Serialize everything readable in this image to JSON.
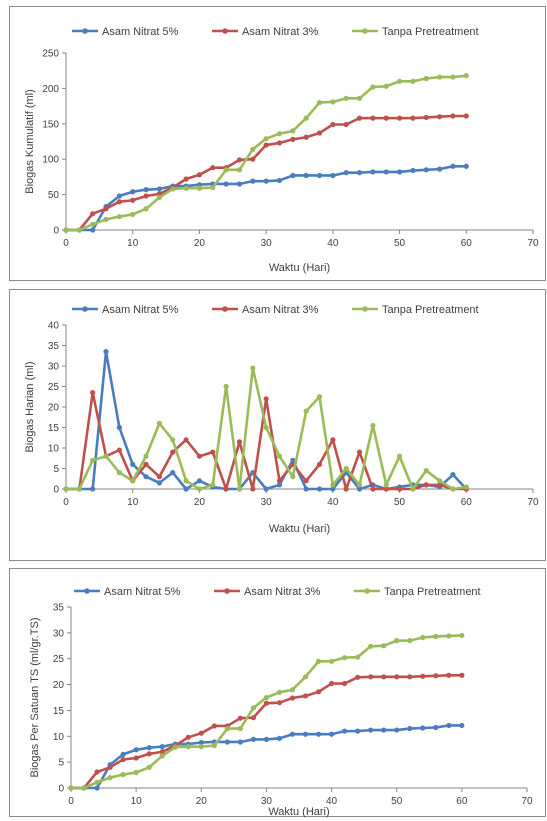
{
  "chart_data": [
    {
      "type": "line",
      "xlabel": "Waktu (Hari)",
      "ylabel": "Biogas Kumulatif (ml)",
      "xlim": [
        0,
        70
      ],
      "ylim": [
        0,
        250
      ],
      "xticks": [
        0,
        10,
        20,
        30,
        40,
        50,
        60,
        70
      ],
      "yticks": [
        0,
        50,
        100,
        150,
        200,
        250
      ],
      "grid": "none",
      "legend_position": "top",
      "x": [
        0,
        2,
        4,
        6,
        8,
        10,
        12,
        14,
        16,
        18,
        20,
        22,
        24,
        26,
        28,
        30,
        32,
        34,
        36,
        38,
        40,
        42,
        44,
        46,
        48,
        50,
        52,
        54,
        56,
        58,
        60
      ],
      "series": [
        {
          "name": "Asam Nitrat 5%",
          "color": "#4a7dbe",
          "values": [
            0,
            0,
            0,
            33,
            48,
            54,
            57,
            58,
            62,
            62,
            64,
            65,
            65,
            65,
            69,
            69,
            70,
            77,
            77,
            77,
            77,
            81,
            81,
            82,
            82,
            82,
            84,
            85,
            86,
            90,
            90
          ]
        },
        {
          "name": "Asam Nitrat 3%",
          "color": "#c0504d",
          "values": [
            0,
            0,
            23,
            30,
            40,
            42,
            48,
            51,
            60,
            72,
            78,
            88,
            88,
            99,
            100,
            120,
            123,
            128,
            131,
            137,
            149,
            149,
            158,
            158,
            158,
            158,
            158,
            159,
            160,
            161,
            161
          ]
        },
        {
          "name": "Tanpa Pretreatment",
          "color": "#9bbb59",
          "values": [
            0,
            0,
            8,
            15,
            19,
            22,
            30,
            46,
            58,
            59,
            59,
            60,
            85,
            85,
            114,
            129,
            136,
            140,
            158,
            180,
            181,
            186,
            186,
            202,
            203,
            210,
            210,
            214,
            216,
            216,
            218
          ]
        }
      ]
    },
    {
      "type": "line",
      "xlabel": "Waktu (Hari)",
      "ylabel": "Biogas Harian (ml)",
      "xlim": [
        0,
        70
      ],
      "ylim": [
        0,
        40
      ],
      "xticks": [
        0,
        10,
        20,
        30,
        40,
        50,
        60,
        70
      ],
      "yticks": [
        0,
        5,
        10,
        15,
        20,
        25,
        30,
        35,
        40
      ],
      "grid": "none",
      "legend_position": "top",
      "x": [
        0,
        2,
        4,
        6,
        8,
        10,
        12,
        14,
        16,
        18,
        20,
        22,
        24,
        26,
        28,
        30,
        32,
        34,
        36,
        38,
        40,
        42,
        44,
        46,
        48,
        50,
        52,
        54,
        56,
        58,
        60
      ],
      "series": [
        {
          "name": "Asam Nitrat 5%",
          "color": "#4a7dbe",
          "values": [
            0,
            0,
            0,
            33.5,
            15,
            6,
            3,
            1.5,
            4,
            0,
            2,
            0.5,
            0,
            0,
            4,
            0,
            1,
            7,
            0,
            0,
            0,
            4,
            0,
            1,
            0,
            0.5,
            1,
            1,
            0.5,
            3.5,
            0
          ]
        },
        {
          "name": "Asam Nitrat 3%",
          "color": "#c0504d",
          "values": [
            0,
            0,
            23.5,
            8,
            9.5,
            2,
            6,
            3,
            9,
            12,
            8,
            9,
            0,
            11.5,
            0,
            22,
            2,
            6,
            2,
            6,
            12,
            0,
            9,
            0,
            0,
            0,
            0,
            1,
            1,
            0,
            0
          ]
        },
        {
          "name": "Tanpa Pretreatment",
          "color": "#9bbb59",
          "values": [
            0,
            0,
            7,
            8,
            4,
            2,
            8,
            16,
            12,
            2,
            0,
            1,
            25,
            0,
            29.5,
            15,
            8,
            3,
            19,
            22.5,
            1,
            5,
            1,
            15.5,
            1,
            8,
            0,
            4.5,
            2,
            0,
            0.5
          ]
        }
      ]
    },
    {
      "type": "line",
      "xlabel": "Waktu (Hari)",
      "ylabel": "Biogas Per Satuan TS (ml/gr.TS)",
      "xlim": [
        0,
        70
      ],
      "ylim": [
        0,
        35
      ],
      "xticks": [
        0,
        10,
        20,
        30,
        40,
        50,
        60,
        70
      ],
      "yticks": [
        0,
        5,
        10,
        15,
        20,
        25,
        30,
        35
      ],
      "grid": "none",
      "legend_position": "top",
      "x": [
        0,
        2,
        4,
        6,
        8,
        10,
        12,
        14,
        16,
        18,
        20,
        22,
        24,
        26,
        28,
        30,
        32,
        34,
        36,
        38,
        40,
        42,
        44,
        46,
        48,
        50,
        52,
        54,
        56,
        58,
        60
      ],
      "series": [
        {
          "name": "Asam Nitrat 5%",
          "color": "#4a7dbe",
          "values": [
            0,
            0,
            0,
            4.5,
            6.5,
            7.4,
            7.8,
            8.0,
            8.5,
            8.5,
            8.8,
            8.9,
            8.9,
            8.9,
            9.4,
            9.4,
            9.6,
            10.4,
            10.4,
            10.4,
            10.4,
            11.0,
            11.0,
            11.2,
            11.2,
            11.2,
            11.5,
            11.6,
            11.7,
            12.1,
            12.1
          ]
        },
        {
          "name": "Asam Nitrat 3%",
          "color": "#c0504d",
          "values": [
            0,
            0,
            3.1,
            4.0,
            5.5,
            5.8,
            6.6,
            7.0,
            8.2,
            9.8,
            10.6,
            12.0,
            12.0,
            13.5,
            13.6,
            16.4,
            16.5,
            17.4,
            17.8,
            18.6,
            20.2,
            20.2,
            21.4,
            21.5,
            21.5,
            21.5,
            21.5,
            21.6,
            21.7,
            21.8,
            21.8
          ]
        },
        {
          "name": "Tanpa Pretreatment",
          "color": "#9bbb59",
          "values": [
            0,
            0,
            1.1,
            2.0,
            2.6,
            3.0,
            4.0,
            6.2,
            7.9,
            8.0,
            8.0,
            8.2,
            11.5,
            11.5,
            15.5,
            17.5,
            18.5,
            19.0,
            21.5,
            24.5,
            24.5,
            25.2,
            25.3,
            27.4,
            27.5,
            28.5,
            28.5,
            29.1,
            29.3,
            29.4,
            29.5
          ]
        }
      ]
    }
  ]
}
